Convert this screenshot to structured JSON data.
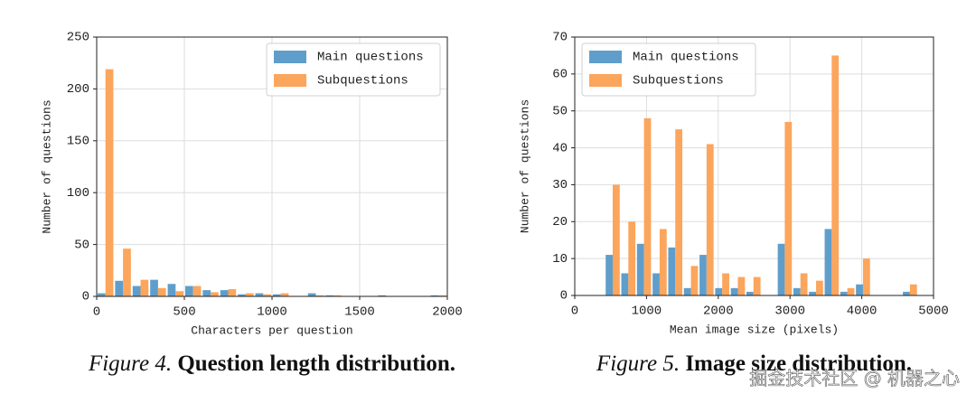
{
  "chart_data": [
    {
      "type": "histogram",
      "xlabel": "Characters per question",
      "ylabel": "Number of questions",
      "figure_label": "Figure 4.",
      "caption": "Question length distribution.",
      "bins": [
        0,
        100,
        200,
        300,
        400,
        500,
        600,
        700,
        800,
        900,
        1000,
        1100,
        1200,
        1300,
        1400,
        1500,
        1600,
        1700,
        1800,
        1900,
        2000
      ],
      "series": [
        {
          "name": "Main questions",
          "color": "#5f9ecb",
          "values": [
            3,
            15,
            10,
            16,
            12,
            10,
            6,
            6,
            2,
            3,
            2,
            0,
            3,
            1,
            0,
            0,
            1,
            0,
            0,
            1
          ]
        },
        {
          "name": "Subquestions",
          "color": "#fca55c",
          "values": [
            219,
            46,
            16,
            8,
            5,
            10,
            4,
            7,
            3,
            2,
            3,
            0,
            1,
            1,
            0,
            0,
            0,
            0,
            0,
            1
          ]
        }
      ],
      "xlim": [
        0,
        2000
      ],
      "xticks": [
        0,
        500,
        1000,
        1500,
        2000
      ],
      "ylim": [
        0,
        250
      ],
      "yticks": [
        0,
        50,
        100,
        150,
        200,
        250
      ],
      "grid": true,
      "legend": "upper right"
    },
    {
      "type": "histogram",
      "xlabel": "Mean image size (pixels)",
      "ylabel": "Number of questions",
      "figure_label": "Figure 5.",
      "caption": "Image size distribution.",
      "bins": [
        420,
        638,
        856,
        1074,
        1292,
        1510,
        1728,
        1946,
        2164,
        2382,
        2600,
        2818,
        3036,
        3254,
        3472,
        3690,
        3908,
        4126,
        4344,
        4562,
        4780
      ],
      "series": [
        {
          "name": "Main questions",
          "color": "#5f9ecb",
          "values": [
            11,
            6,
            14,
            6,
            13,
            2,
            11,
            2,
            2,
            1,
            0,
            14,
            2,
            1,
            18,
            1,
            3,
            0,
            0,
            1
          ]
        },
        {
          "name": "Subquestions",
          "color": "#fca55c",
          "values": [
            30,
            20,
            48,
            18,
            45,
            8,
            41,
            6,
            5,
            5,
            0,
            47,
            6,
            4,
            65,
            2,
            10,
            0,
            0,
            3
          ]
        }
      ],
      "xlim": [
        0,
        5000
      ],
      "xticks": [
        0,
        1000,
        2000,
        3000,
        4000,
        5000
      ],
      "ylim": [
        0,
        70
      ],
      "yticks": [
        0,
        10,
        20,
        30,
        40,
        50,
        60,
        70
      ],
      "grid": true,
      "legend": "upper left"
    }
  ],
  "watermark": "掘金技术社区 @ 机器之心"
}
